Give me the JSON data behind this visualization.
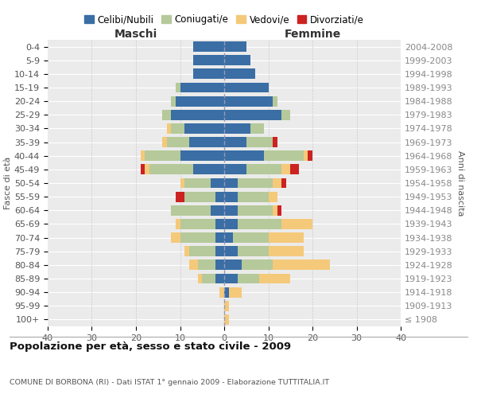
{
  "age_groups": [
    "0-4",
    "5-9",
    "10-14",
    "15-19",
    "20-24",
    "25-29",
    "30-34",
    "35-39",
    "40-44",
    "45-49",
    "50-54",
    "55-59",
    "60-64",
    "65-69",
    "70-74",
    "75-79",
    "80-84",
    "85-89",
    "90-94",
    "95-99",
    "100+"
  ],
  "birth_years": [
    "2004-2008",
    "1999-2003",
    "1994-1998",
    "1989-1993",
    "1984-1988",
    "1979-1983",
    "1974-1978",
    "1969-1973",
    "1964-1968",
    "1959-1963",
    "1954-1958",
    "1949-1953",
    "1944-1948",
    "1939-1943",
    "1934-1938",
    "1929-1933",
    "1924-1928",
    "1919-1923",
    "1914-1918",
    "1909-1913",
    "≤ 1908"
  ],
  "colors": {
    "celibe": "#3a6ea5",
    "coniugato": "#b5c99a",
    "vedovo": "#f5c97a",
    "divorziato": "#cc2222"
  },
  "maschi": {
    "celibe": [
      7,
      7,
      7,
      10,
      11,
      12,
      9,
      8,
      10,
      7,
      3,
      2,
      3,
      2,
      2,
      2,
      2,
      2,
      0,
      0,
      0
    ],
    "coniugato": [
      0,
      0,
      0,
      1,
      1,
      2,
      3,
      5,
      8,
      10,
      6,
      7,
      9,
      8,
      8,
      6,
      4,
      3,
      0,
      0,
      0
    ],
    "vedovo": [
      0,
      0,
      0,
      0,
      0,
      0,
      1,
      1,
      1,
      1,
      1,
      0,
      0,
      1,
      2,
      1,
      2,
      1,
      1,
      0,
      0
    ],
    "divorziato": [
      0,
      0,
      0,
      0,
      0,
      0,
      0,
      0,
      0,
      1,
      0,
      2,
      0,
      0,
      0,
      0,
      0,
      0,
      0,
      0,
      0
    ]
  },
  "femmine": {
    "celibe": [
      5,
      6,
      7,
      10,
      11,
      13,
      6,
      5,
      9,
      5,
      3,
      3,
      3,
      3,
      2,
      3,
      4,
      3,
      1,
      0,
      0
    ],
    "coniugato": [
      0,
      0,
      0,
      0,
      1,
      2,
      3,
      6,
      9,
      8,
      8,
      7,
      8,
      10,
      8,
      7,
      7,
      5,
      0,
      0,
      0
    ],
    "vedovo": [
      0,
      0,
      0,
      0,
      0,
      0,
      0,
      0,
      1,
      2,
      2,
      2,
      1,
      7,
      8,
      8,
      13,
      7,
      3,
      1,
      1
    ],
    "divorziato": [
      0,
      0,
      0,
      0,
      0,
      0,
      0,
      1,
      1,
      2,
      1,
      0,
      1,
      0,
      0,
      0,
      0,
      0,
      0,
      0,
      0
    ]
  },
  "title": "Popolazione per età, sesso e stato civile - 2009",
  "subtitle": "COMUNE DI BORBONA (RI) - Dati ISTAT 1° gennaio 2009 - Elaborazione TUTTITALIA.IT",
  "xlabel_left": "Maschi",
  "xlabel_right": "Femmine",
  "ylabel_left": "Fasce di età",
  "ylabel_right": "Anni di nascita",
  "xlim": 40,
  "legend_labels": [
    "Celibi/Nubili",
    "Coniugati/e",
    "Vedovi/e",
    "Divorziati/e"
  ],
  "background_color": "#ebebeb"
}
